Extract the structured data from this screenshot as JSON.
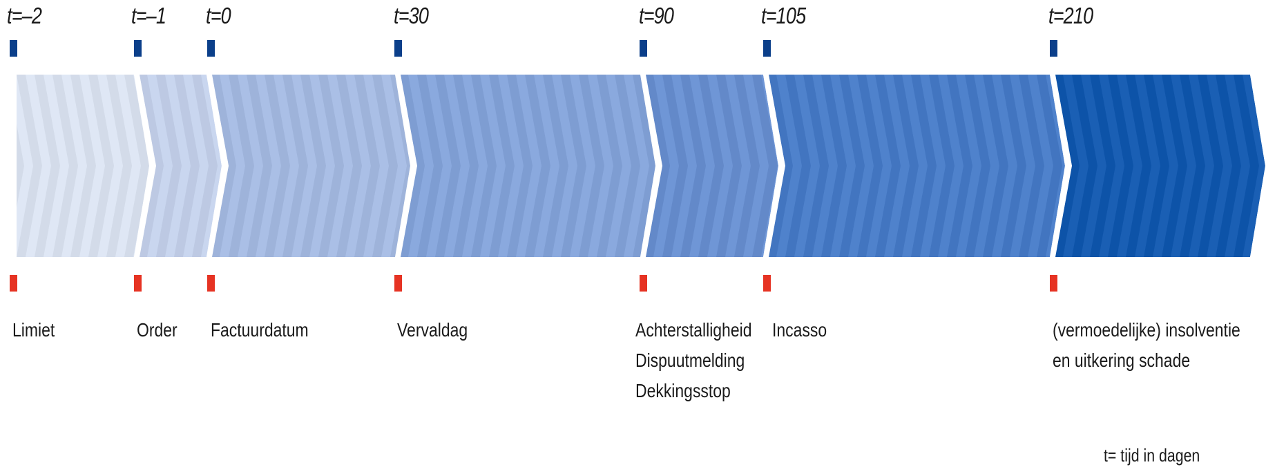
{
  "phases": [
    {
      "t_label": "t=–2",
      "events": [
        "Limiet"
      ],
      "color": "#dfe7f5"
    },
    {
      "t_label": "t=–1",
      "events": [
        "Order"
      ],
      "color": "#c9d6ef"
    },
    {
      "t_label": "t=0",
      "events": [
        "Factuurdatum"
      ],
      "color": "#aabfe6"
    },
    {
      "t_label": "t=30",
      "events": [
        "Vervaldag"
      ],
      "color": "#8aa9de"
    },
    {
      "t_label": "t=90",
      "events": [
        "Achterstalligheid",
        "Dispuutmelding",
        "Dekkingsstop"
      ],
      "color": "#6f96d6"
    },
    {
      "t_label": "t=105",
      "events": [
        "Incasso"
      ],
      "color": "#4f82cc"
    },
    {
      "t_label": "t=210",
      "events": [
        "(vermoedelijke) insolventie",
        "en uitkering schade"
      ],
      "color": "#1a5fb4"
    }
  ],
  "marker_colors": {
    "top": "#0b3f8a",
    "bottom": "#e63323"
  },
  "legend": "t= tijd in dagen"
}
